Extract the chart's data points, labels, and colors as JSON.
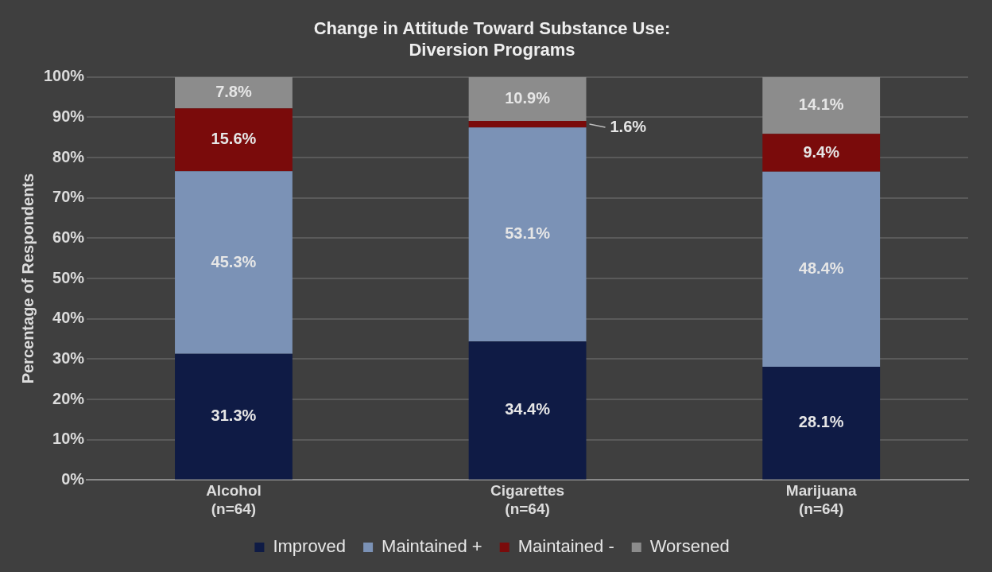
{
  "chart_data": {
    "type": "bar",
    "stacked": true,
    "title": "Change in Attitude Toward Substance Use:\nDiversion Programs",
    "ylabel": "Percentage of Respondents",
    "categories": [
      "Alcohol\n(n=64)",
      "Cigarettes\n(n=64)",
      "Marijuana\n(n=64)"
    ],
    "series": [
      {
        "name": "Improved",
        "color": "#0f1b45",
        "values": [
          31.3,
          34.4,
          28.1
        ],
        "value_labels": [
          "31.3%",
          "34.4%",
          "28.1%"
        ]
      },
      {
        "name": "Maintained +",
        "color": "#7b92b6",
        "values": [
          45.3,
          53.1,
          48.4
        ],
        "value_labels": [
          "45.3%",
          "53.1%",
          "48.4%"
        ]
      },
      {
        "name": "Maintained -",
        "color": "#7a0b0b",
        "values": [
          15.6,
          1.6,
          9.4
        ],
        "value_labels": [
          "15.6%",
          "1.6%",
          "9.4%"
        ]
      },
      {
        "name": "Worsened",
        "color": "#8c8c8c",
        "values": [
          7.8,
          10.9,
          14.1
        ],
        "value_labels": [
          "7.8%",
          "10.9%",
          "14.1%"
        ]
      }
    ],
    "ylim": [
      0,
      100
    ],
    "yticks": [
      {
        "value": 0,
        "label": "0%"
      },
      {
        "value": 10,
        "label": "10%"
      },
      {
        "value": 20,
        "label": "20%"
      },
      {
        "value": 30,
        "label": "30%"
      },
      {
        "value": 40,
        "label": "40%"
      },
      {
        "value": 50,
        "label": "50%"
      },
      {
        "value": 60,
        "label": "60%"
      },
      {
        "value": 70,
        "label": "70%"
      },
      {
        "value": 80,
        "label": "80%"
      },
      {
        "value": 90,
        "label": "90%"
      },
      {
        "value": 100,
        "label": "100%"
      }
    ],
    "grid": "y",
    "legend": "bottom"
  }
}
